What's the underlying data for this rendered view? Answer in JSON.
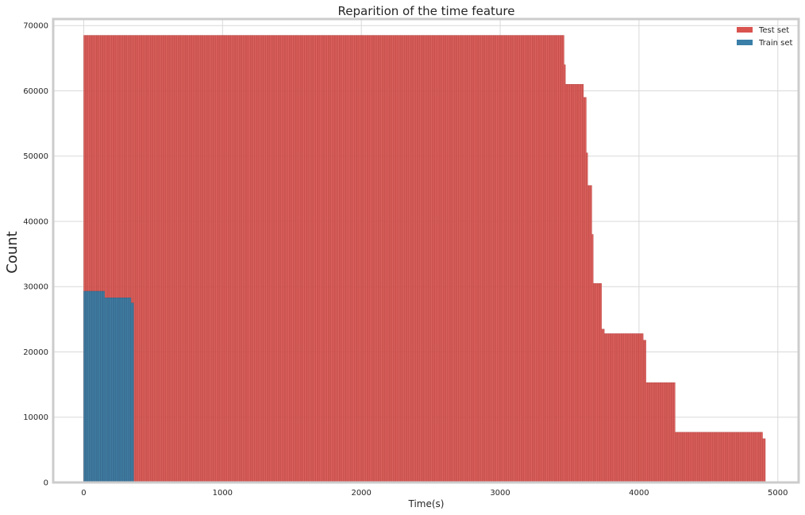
{
  "chart_data": {
    "type": "bar",
    "title": "Reparition of the time feature",
    "xlabel": "Time(s)",
    "ylabel": "Count",
    "xlim": [
      -220,
      5150
    ],
    "ylim": [
      0,
      71000
    ],
    "xticks": [
      0,
      1000,
      2000,
      3000,
      4000,
      5000
    ],
    "yticks": [
      0,
      10000,
      20000,
      30000,
      40000,
      50000,
      60000,
      70000
    ],
    "grid": true,
    "legend_position": "top-right",
    "bin_width": 10,
    "series": [
      {
        "name": "Test set",
        "color": "#d9534f",
        "segments": [
          {
            "x_start": 0,
            "x_end": 3460,
            "count": 68500
          },
          {
            "x_start": 3460,
            "x_end": 3470,
            "count": 64000
          },
          {
            "x_start": 3470,
            "x_end": 3600,
            "count": 61000
          },
          {
            "x_start": 3600,
            "x_end": 3620,
            "count": 59000
          },
          {
            "x_start": 3620,
            "x_end": 3630,
            "count": 50500
          },
          {
            "x_start": 3630,
            "x_end": 3660,
            "count": 45500
          },
          {
            "x_start": 3660,
            "x_end": 3670,
            "count": 38000
          },
          {
            "x_start": 3670,
            "x_end": 3730,
            "count": 30500
          },
          {
            "x_start": 3730,
            "x_end": 3750,
            "count": 23500
          },
          {
            "x_start": 3750,
            "x_end": 4030,
            "count": 22800
          },
          {
            "x_start": 4030,
            "x_end": 4050,
            "count": 21800
          },
          {
            "x_start": 4050,
            "x_end": 4260,
            "count": 15300
          },
          {
            "x_start": 4260,
            "x_end": 4890,
            "count": 7700
          },
          {
            "x_start": 4890,
            "x_end": 4910,
            "count": 6700
          }
        ]
      },
      {
        "name": "Train set",
        "color": "#3a7fa8",
        "segments": [
          {
            "x_start": 0,
            "x_end": 150,
            "count": 29300
          },
          {
            "x_start": 150,
            "x_end": 340,
            "count": 28300
          },
          {
            "x_start": 340,
            "x_end": 360,
            "count": 27500
          }
        ]
      }
    ]
  }
}
